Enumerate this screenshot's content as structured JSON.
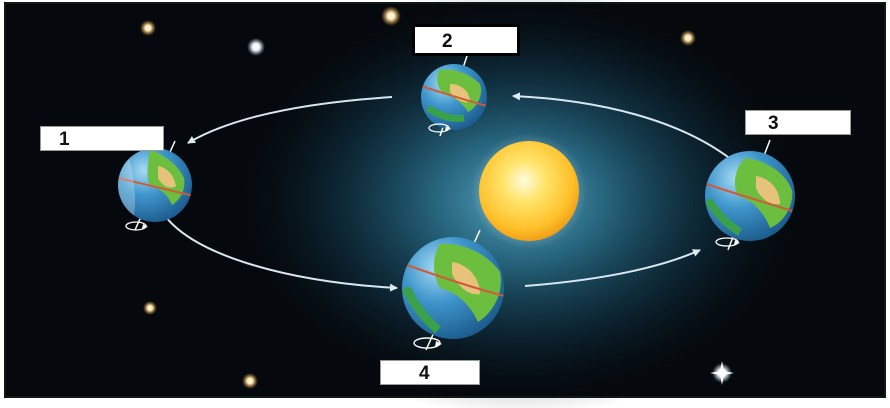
{
  "diagram": {
    "labels": [
      {
        "id": "1",
        "text": "1"
      },
      {
        "id": "2",
        "text": "2"
      },
      {
        "id": "3",
        "text": "3"
      },
      {
        "id": "4",
        "text": "4"
      }
    ],
    "colors": {
      "space": "#05080c",
      "glow": "#3f90b0",
      "sun": "#ffd040",
      "ocean": "#2f86c2",
      "land": "#5cb440",
      "orbit": "#d8e6f0",
      "frame": "#0d1a14"
    }
  }
}
